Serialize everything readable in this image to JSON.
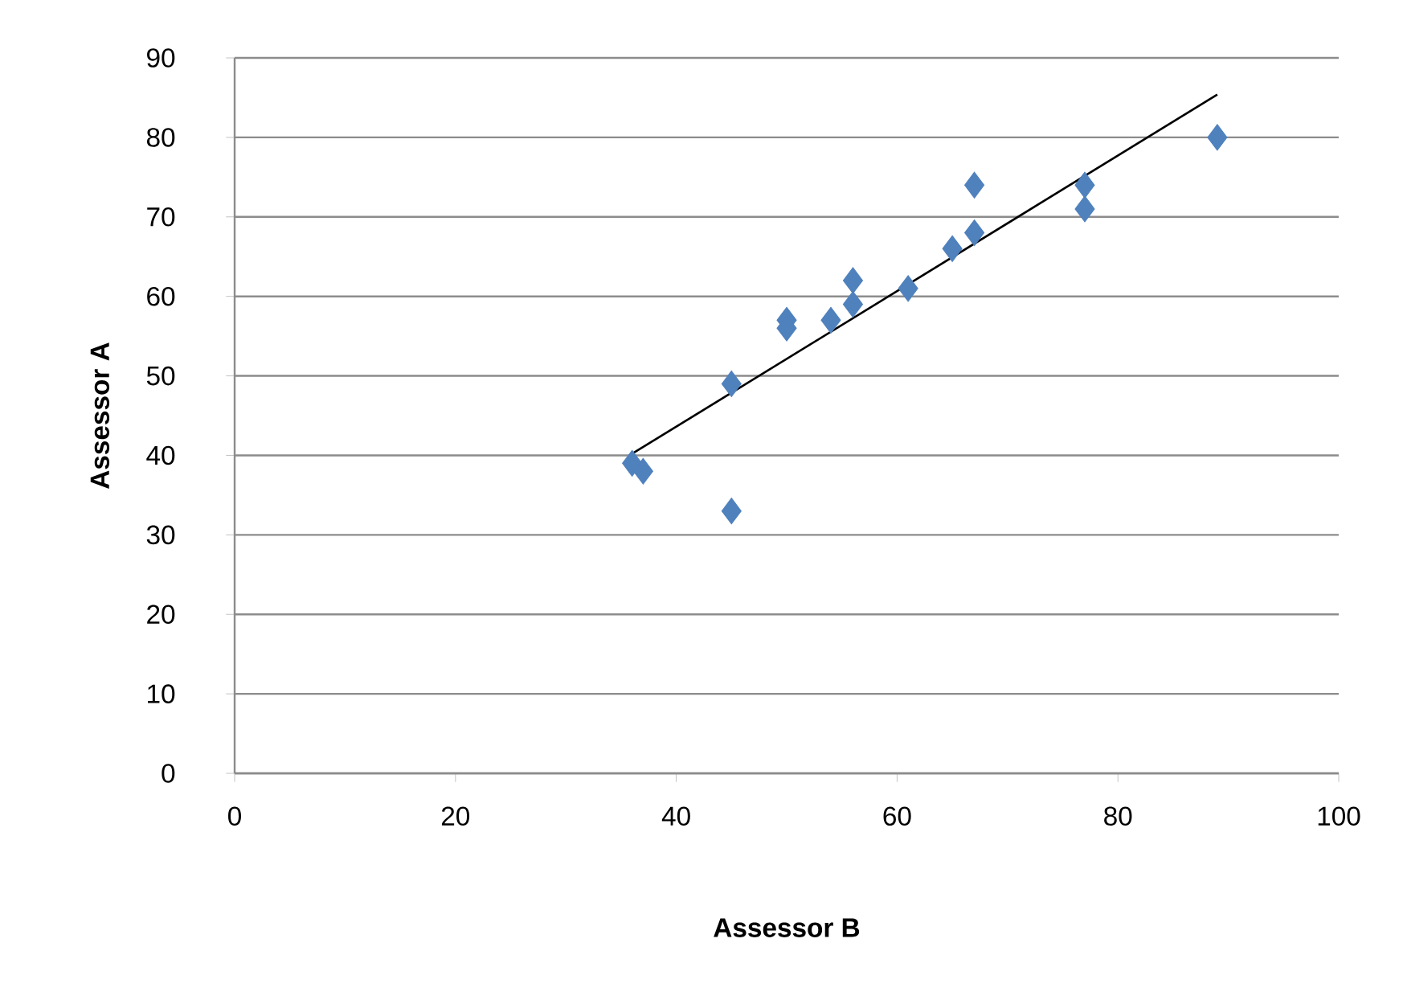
{
  "chart_data": {
    "type": "scatter",
    "xlabel": "Assessor B",
    "ylabel": "Assessor A",
    "xlim": [
      0,
      100
    ],
    "xticks": [
      0,
      20,
      40,
      60,
      80,
      100
    ],
    "ylim": [
      0,
      90
    ],
    "yticks": [
      0,
      10,
      20,
      30,
      40,
      50,
      60,
      70,
      80,
      90
    ],
    "grid": "y",
    "marker": "diamond",
    "series": [
      {
        "type": "scatter",
        "color": "#4f81bd",
        "x": [
          36,
          37,
          45,
          45,
          50,
          50,
          54,
          56,
          56,
          61,
          65,
          67,
          67,
          77,
          77,
          89
        ],
        "values": [
          39,
          38,
          49,
          33,
          57,
          56,
          57,
          62,
          59,
          61,
          66,
          68,
          74,
          74,
          71,
          80
        ]
      },
      {
        "type": "line",
        "color": "#000000",
        "marker": "none",
        "line_style": "solid",
        "x": [
          36,
          89
        ],
        "values": [
          40.2,
          85.4
        ]
      }
    ]
  }
}
